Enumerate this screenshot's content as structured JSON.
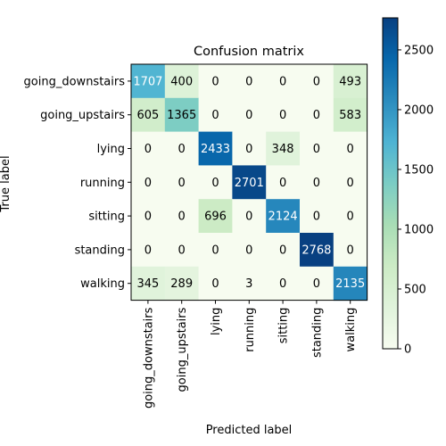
{
  "chart_data": {
    "type": "heatmap",
    "title": "Confusion matrix",
    "xlabel": "Predicted label",
    "ylabel": "True label",
    "labels": [
      "going_downstairs",
      "going_upstairs",
      "lying",
      "running",
      "sitting",
      "standing",
      "walking"
    ],
    "matrix": [
      [
        1707,
        400,
        0,
        0,
        0,
        0,
        493
      ],
      [
        605,
        1365,
        0,
        0,
        0,
        0,
        583
      ],
      [
        0,
        0,
        2433,
        0,
        348,
        0,
        0
      ],
      [
        0,
        0,
        0,
        2701,
        0,
        0,
        0
      ],
      [
        0,
        0,
        696,
        0,
        2124,
        0,
        0
      ],
      [
        0,
        0,
        0,
        0,
        0,
        2768,
        0
      ],
      [
        345,
        289,
        0,
        3,
        0,
        0,
        2135
      ]
    ],
    "colormap": "GnBu",
    "color_range": [
      0,
      2768
    ],
    "colorbar_ticks": [
      0,
      500,
      1000,
      1500,
      2000,
      2500
    ],
    "text_colors": {
      "light": "#ffffff",
      "dark": "#000000"
    }
  }
}
